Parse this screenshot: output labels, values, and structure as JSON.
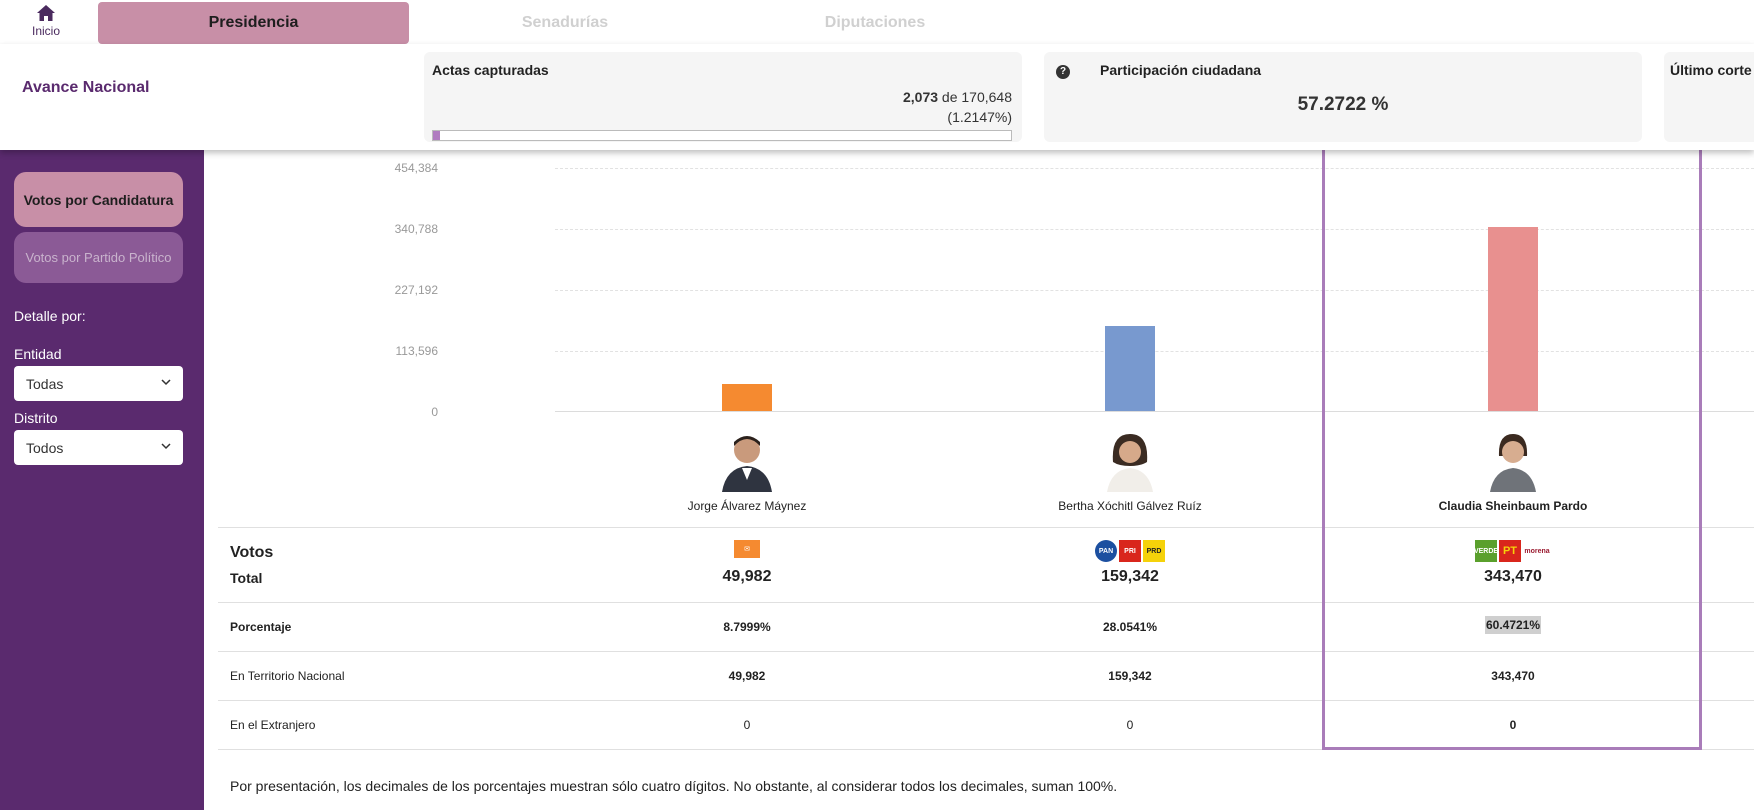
{
  "nav": {
    "home_label": "Inicio",
    "tabs": [
      {
        "label": "Presidencia",
        "active": true
      },
      {
        "label": "Senadurías",
        "active": false
      },
      {
        "label": "Diputaciones",
        "active": false
      }
    ]
  },
  "header": {
    "title": "Avance Nacional",
    "actas": {
      "title": "Actas capturadas",
      "captured": "2,073",
      "of": "de",
      "total": "170,648",
      "percent": "(1.2147%)",
      "progress": 0.012147
    },
    "participacion": {
      "title": "Participación ciudadana",
      "value": "57.2722 %"
    },
    "ultimo_corte": {
      "title": "Último corte"
    }
  },
  "sidebar": {
    "buttons": [
      {
        "label": "Votos por Candidatura",
        "active": true
      },
      {
        "label": "Votos por Partido Político",
        "active": false
      }
    ],
    "detalle_label": "Detalle por:",
    "entidad_label": "Entidad",
    "entidad_value": "Todas",
    "distrito_label": "Distrito",
    "distrito_value": "Todos"
  },
  "chart_data": {
    "type": "bar",
    "categories": [
      "Jorge Álvarez Máynez",
      "Bertha Xóchitl Gálvez Ruíz",
      "Claudia Sheinbaum Pardo"
    ],
    "values": [
      49982,
      159342,
      343470
    ],
    "colors": [
      "#f58a30",
      "#7899cf",
      "#e8908f"
    ],
    "yticks": [
      "454,384",
      "340,788",
      "227,192",
      "113,596",
      "0"
    ],
    "ylim": [
      0,
      454384
    ]
  },
  "table": {
    "votos_label": "Votos",
    "total_label": "Total",
    "totals": [
      "49,982",
      "159,342",
      "343,470"
    ],
    "rows": [
      {
        "label": "Porcentaje",
        "values": [
          "8.7999%",
          "28.0541%",
          "60.4721%"
        ]
      },
      {
        "label": "En Territorio Nacional",
        "values": [
          "49,982",
          "159,342",
          "343,470"
        ]
      },
      {
        "label": "En el Extranjero",
        "values": [
          "0",
          "0",
          "0"
        ]
      }
    ],
    "parties": [
      [
        {
          "name": "MC",
          "color": "#f58a30"
        }
      ],
      [
        {
          "name": "PAN",
          "color": "#1c4fa0"
        },
        {
          "name": "PRI",
          "color": "#d9261c"
        },
        {
          "name": "PRD",
          "color": "#f5d20a"
        }
      ],
      [
        {
          "name": "VERDE",
          "color": "#5aa02c"
        },
        {
          "name": "PT",
          "color": "#d9261c"
        },
        {
          "name": "morena",
          "color": "#9b1b30"
        }
      ]
    ]
  },
  "footnote": "Por presentación, los decimales de los porcentajes muestran sólo cuatro dígitos. No obstante, al considerar todos los decimales, suman 100%."
}
